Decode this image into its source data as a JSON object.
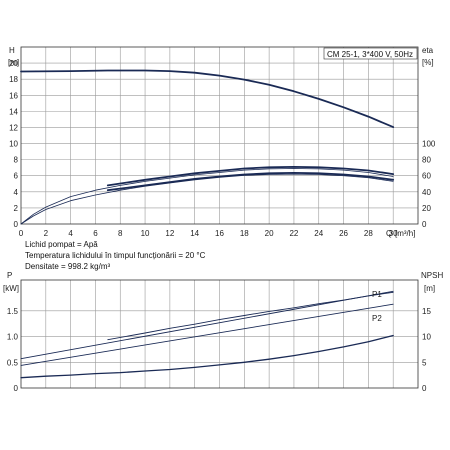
{
  "chart_data": [
    {
      "type": "line",
      "title": "CM 25-1, 3*400 V, 50Hz",
      "xlabel": "Q",
      "xunit": "[m³/h]",
      "xlim": [
        0,
        32
      ],
      "xticks": [
        0,
        2,
        4,
        6,
        8,
        10,
        12,
        14,
        16,
        18,
        20,
        22,
        24,
        26,
        28,
        30
      ],
      "left_axis": {
        "label": "H",
        "unit": "[m]",
        "ylim": [
          0,
          22
        ],
        "ticks": [
          0,
          2,
          4,
          6,
          8,
          10,
          12,
          14,
          16,
          18,
          20
        ]
      },
      "right_axis": {
        "label": "eta",
        "unit": "[%]",
        "ylim": [
          0,
          220
        ],
        "ticks": [
          0,
          20,
          40,
          60,
          80,
          100
        ]
      },
      "grid": true,
      "series": [
        {
          "axis": "left",
          "style": "thick",
          "x": [
            0,
            4,
            7,
            10,
            12,
            14,
            16,
            18,
            20,
            22,
            24,
            26,
            28,
            30
          ],
          "y": [
            18.95,
            19.0,
            19.08,
            19.08,
            19.0,
            18.8,
            18.45,
            17.95,
            17.3,
            16.5,
            15.55,
            14.5,
            13.35,
            12.05
          ]
        },
        {
          "axis": "right",
          "style": "thin",
          "x": [
            0,
            1,
            2,
            4,
            6,
            8,
            10,
            12,
            14,
            16,
            18,
            20,
            22,
            24,
            26,
            28,
            30
          ],
          "y": [
            0,
            12,
            21,
            34,
            42,
            48,
            53,
            57,
            61,
            64,
            67,
            68.5,
            69,
            68.5,
            67,
            64,
            59
          ]
        },
        {
          "axis": "right",
          "style": "thick",
          "x": [
            7,
            10,
            12,
            14,
            16,
            18,
            20,
            22,
            24,
            26,
            28,
            30
          ],
          "y": [
            48,
            55,
            59,
            63,
            66,
            69,
            70.5,
            71,
            70.5,
            69,
            66.5,
            62
          ]
        },
        {
          "axis": "right",
          "style": "thin",
          "x": [
            0,
            1,
            2,
            4,
            6,
            8,
            10,
            12,
            14,
            16,
            18,
            20,
            22,
            24,
            26,
            28,
            30
          ],
          "y": [
            0,
            10,
            18,
            29,
            36,
            42,
            47,
            51,
            55,
            58,
            60.5,
            61.5,
            62,
            61.5,
            60,
            57.5,
            53
          ]
        },
        {
          "axis": "right",
          "style": "thick",
          "x": [
            7,
            10,
            12,
            14,
            16,
            18,
            20,
            22,
            24,
            26,
            28,
            30
          ],
          "y": [
            42,
            48,
            52,
            56,
            59,
            61.5,
            63,
            63.5,
            63,
            61.5,
            59,
            55
          ]
        }
      ],
      "notes": [
        "Lichid pompat = Apă",
        "Temperatura lichidului în timpul funcționării = 20 °C",
        "Densitate = 998.2 kg/m³"
      ]
    },
    {
      "type": "line",
      "xlim": [
        0,
        32
      ],
      "left_axis": {
        "label": "P",
        "unit": "[kW]",
        "ylim": [
          0,
          2.1
        ],
        "ticks": [
          0,
          0.5,
          1.0,
          1.5
        ],
        "tick_labels": [
          "0",
          "0.5",
          "1.0",
          "1.5"
        ]
      },
      "right_axis": {
        "label": "NPSH",
        "unit": "[m]",
        "ylim": [
          0,
          21
        ],
        "ticks": [
          0,
          5,
          10,
          15
        ]
      },
      "grid": true,
      "series": [
        {
          "name": "P1",
          "axis": "left",
          "style": "thin",
          "x": [
            0,
            30
          ],
          "y": [
            0.57,
            1.88
          ]
        },
        {
          "name": "P2",
          "axis": "left",
          "style": "thin",
          "x": [
            0,
            30
          ],
          "y": [
            0.44,
            1.63
          ]
        },
        {
          "axis": "left",
          "style": "thin",
          "x": [
            7,
            10,
            12,
            14,
            16,
            18,
            20,
            22,
            24,
            26,
            28,
            30
          ],
          "y": [
            0.94,
            1.07,
            1.16,
            1.24,
            1.33,
            1.41,
            1.49,
            1.56,
            1.64,
            1.71,
            1.79,
            1.86
          ]
        },
        {
          "axis": "right",
          "style": "thin",
          "x": [
            0,
            2,
            4,
            6,
            8,
            10,
            12,
            14,
            16,
            18,
            20,
            22,
            24,
            26,
            28,
            30
          ],
          "y": [
            2.0,
            2.3,
            2.5,
            2.8,
            3.0,
            3.3,
            3.6,
            4.0,
            4.5,
            5.0,
            5.6,
            6.3,
            7.1,
            8.0,
            9.0,
            10.2
          ]
        }
      ]
    }
  ]
}
